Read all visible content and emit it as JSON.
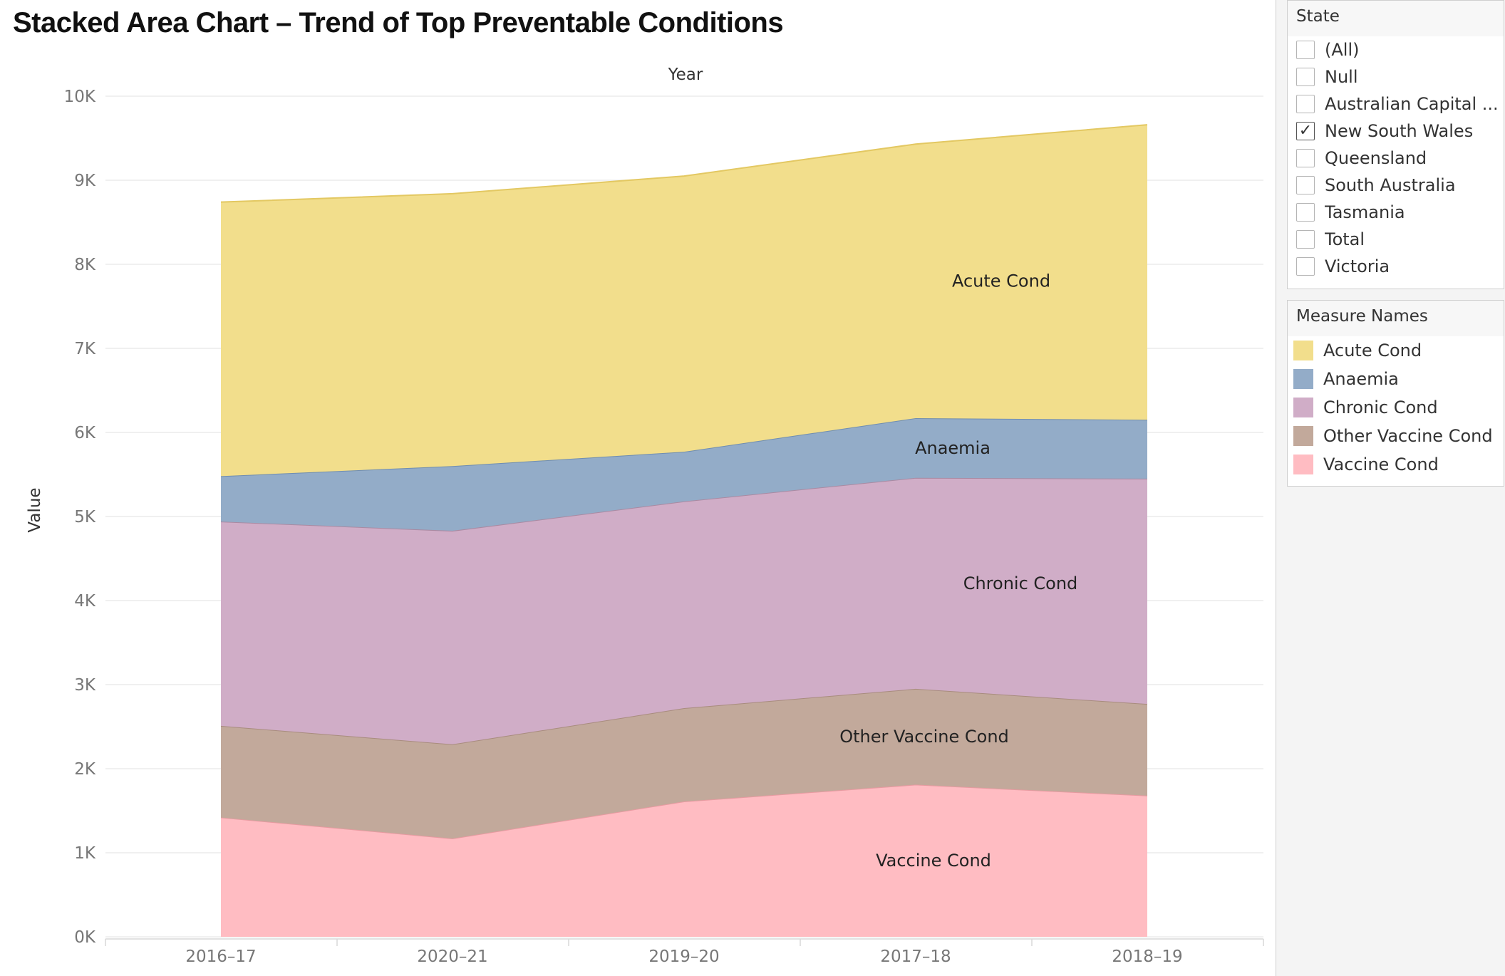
{
  "page_title": "Stacked Area Chart – Trend of Top Preventable Conditions",
  "chart_data": {
    "type": "area",
    "stacked": true,
    "title": "Stacked Area Chart – Trend of Top Preventable Conditions",
    "x_header": "Year",
    "ylabel": "Value",
    "categories": [
      "2016–17",
      "2020–21",
      "2019–20",
      "2017–18",
      "2018–19"
    ],
    "ylim": [
      0,
      10000
    ],
    "yticks": [
      0,
      1000,
      2000,
      3000,
      4000,
      5000,
      6000,
      7000,
      8000,
      9000,
      10000
    ],
    "ytick_labels": [
      "0K",
      "1K",
      "2K",
      "3K",
      "4K",
      "5K",
      "6K",
      "7K",
      "8K",
      "9K",
      "10K"
    ],
    "grid": true,
    "series": [
      {
        "name": "Vaccine Cond",
        "color": "#ffbcc2",
        "line": "#e79aa0",
        "values": [
          1420,
          1170,
          1610,
          1810,
          1680
        ]
      },
      {
        "name": "Other Vaccine Cond",
        "color": "#c2a99b",
        "line": "#a88c7e",
        "values": [
          1090,
          1120,
          1110,
          1140,
          1090
        ]
      },
      {
        "name": "Chronic Cond",
        "color": "#d0adc7",
        "line": "#a98aa2",
        "values": [
          2430,
          2540,
          2460,
          2510,
          2680
        ]
      },
      {
        "name": "Anaemia",
        "color": "#93acc8",
        "line": "#6f8db0",
        "values": [
          540,
          770,
          590,
          710,
          700
        ]
      },
      {
        "name": "Acute Cond",
        "color": "#f2de8c",
        "line": "#e3c862",
        "values": [
          3260,
          3240,
          3280,
          3260,
          3510
        ]
      }
    ]
  },
  "filters": {
    "state": {
      "title": "State",
      "items": [
        {
          "label": "(All)",
          "checked": false
        },
        {
          "label": "Null",
          "checked": false
        },
        {
          "label": "Australian Capital ...",
          "checked": false
        },
        {
          "label": "New South Wales",
          "checked": true
        },
        {
          "label": "Queensland",
          "checked": false
        },
        {
          "label": "South Australia",
          "checked": false
        },
        {
          "label": "Tasmania",
          "checked": false
        },
        {
          "label": "Total",
          "checked": false
        },
        {
          "label": "Victoria",
          "checked": false
        }
      ]
    },
    "measure_names": {
      "title": "Measure Names",
      "items": [
        {
          "label": "Acute Cond",
          "color": "#f2de8c"
        },
        {
          "label": "Anaemia",
          "color": "#93acc8"
        },
        {
          "label": "Chronic Cond",
          "color": "#d0adc7"
        },
        {
          "label": "Other Vaccine Cond",
          "color": "#c2a99b"
        },
        {
          "label": "Vaccine Cond",
          "color": "#ffbcc2"
        }
      ]
    }
  }
}
